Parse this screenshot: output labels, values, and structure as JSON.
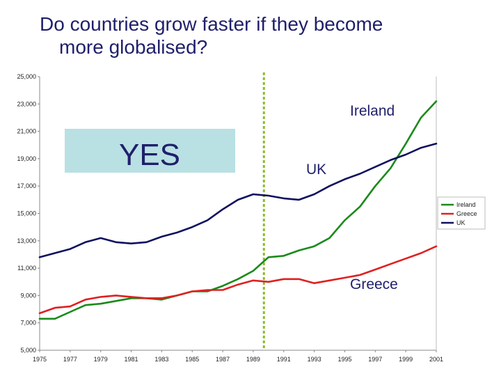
{
  "slide": {
    "title_line1": "Do countries grow faster if they become",
    "title_line2": "more globalised?"
  },
  "chart_data": {
    "type": "line",
    "title": "",
    "xlabel": "",
    "ylabel": "",
    "xlim": [
      1975,
      2001
    ],
    "ylim": [
      5000,
      25000
    ],
    "x_ticks": [
      "1975",
      "1977",
      "1979",
      "1981",
      "1983",
      "1985",
      "1987",
      "1989",
      "1991",
      "1993",
      "1995",
      "1997",
      "1999",
      "2001"
    ],
    "y_ticks": [
      "5,000",
      "7,000",
      "9,000",
      "11,000",
      "13,000",
      "15,000",
      "17,000",
      "19,000",
      "21,000",
      "23,000",
      "25,000"
    ],
    "x": [
      1975,
      1976,
      1977,
      1978,
      1979,
      1980,
      1981,
      1982,
      1983,
      1984,
      1985,
      1986,
      1987,
      1988,
      1989,
      1990,
      1991,
      1992,
      1993,
      1994,
      1995,
      1996,
      1997,
      1998,
      1999,
      2000,
      2001
    ],
    "series": [
      {
        "name": "Ireland",
        "color": "#1a8a1a",
        "values": [
          7300,
          7300,
          7800,
          8300,
          8400,
          8600,
          8800,
          8800,
          8700,
          9000,
          9300,
          9300,
          9700,
          10200,
          10800,
          11800,
          11900,
          12300,
          12600,
          13200,
          14500,
          15500,
          17000,
          18300,
          20100,
          22000,
          23200
        ]
      },
      {
        "name": "Greece",
        "color": "#e02020",
        "values": [
          7700,
          8100,
          8200,
          8700,
          8900,
          9000,
          8900,
          8800,
          8800,
          9000,
          9300,
          9400,
          9400,
          9800,
          10100,
          10000,
          10200,
          10200,
          9900,
          10100,
          10300,
          10500,
          10900,
          11300,
          11700,
          12100,
          12600
        ]
      },
      {
        "name": "UK",
        "color": "#101060",
        "values": [
          11800,
          12100,
          12400,
          12900,
          13200,
          12900,
          12800,
          12900,
          13300,
          13600,
          14000,
          14500,
          15300,
          16000,
          16400,
          16300,
          16100,
          16000,
          16400,
          17000,
          17500,
          17900,
          18400,
          18900,
          19300,
          19800,
          20100
        ]
      }
    ],
    "legend_position": "right",
    "grid": false,
    "reference_line_x": 1989.7,
    "annotations": {
      "ireland": "Ireland",
      "uk": "UK",
      "greece": "Greece",
      "yes": "YES"
    },
    "yes_box_color": "#b9e0e3",
    "ref_line_color": "#8fbc2a"
  }
}
